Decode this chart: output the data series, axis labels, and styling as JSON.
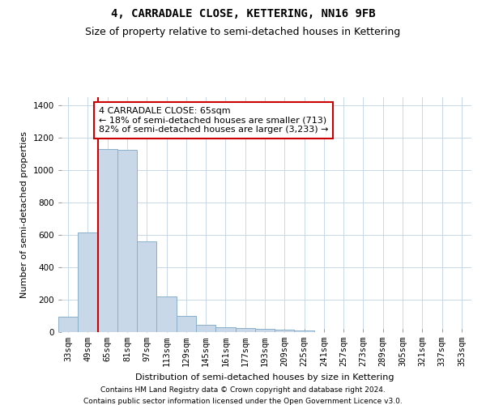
{
  "title": "4, CARRADALE CLOSE, KETTERING, NN16 9FB",
  "subtitle": "Size of property relative to semi-detached houses in Kettering",
  "xlabel": "Distribution of semi-detached houses by size in Kettering",
  "ylabel": "Number of semi-detached properties",
  "footnote1": "Contains HM Land Registry data © Crown copyright and database right 2024.",
  "footnote2": "Contains public sector information licensed under the Open Government Licence v3.0.",
  "annotation_line1": "4 CARRADALE CLOSE: 65sqm",
  "annotation_line2": "← 18% of semi-detached houses are smaller (713)",
  "annotation_line3": "82% of semi-detached houses are larger (3,233) →",
  "bar_color": "#c8d8e8",
  "bar_edge_color": "#8ab0cc",
  "highlight_line_color": "#cc0000",
  "annotation_box_color": "#cc0000",
  "background_color": "#ffffff",
  "grid_color": "#c8d8e8",
  "categories": [
    "33sqm",
    "49sqm",
    "65sqm",
    "81sqm",
    "97sqm",
    "113sqm",
    "129sqm",
    "145sqm",
    "161sqm",
    "177sqm",
    "193sqm",
    "209sqm",
    "225sqm",
    "241sqm",
    "257sqm",
    "273sqm",
    "289sqm",
    "305sqm",
    "321sqm",
    "337sqm",
    "353sqm"
  ],
  "values": [
    95,
    615,
    1130,
    1125,
    560,
    220,
    100,
    45,
    30,
    25,
    20,
    14,
    10,
    0,
    0,
    0,
    0,
    0,
    0,
    0,
    0
  ],
  "ylim": [
    0,
    1450
  ],
  "yticks": [
    0,
    200,
    400,
    600,
    800,
    1000,
    1200,
    1400
  ],
  "property_bin_index": 2,
  "title_fontsize": 10,
  "subtitle_fontsize": 9,
  "axis_label_fontsize": 8,
  "tick_fontsize": 7.5,
  "annotation_fontsize": 8,
  "footnote_fontsize": 6.5
}
